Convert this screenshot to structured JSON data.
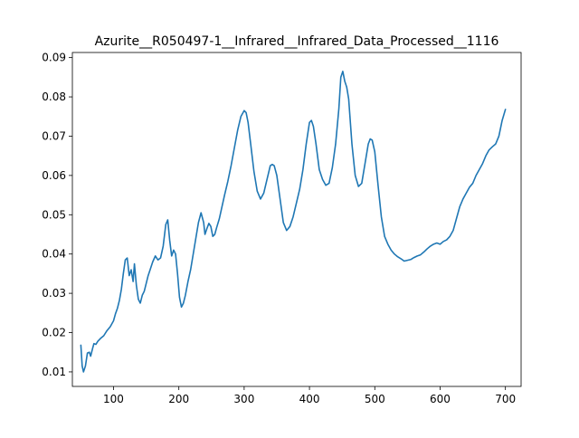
{
  "chart_data": {
    "type": "line",
    "title": "Azurite__R050497-1__Infrared__Infrared_Data_Processed__1116",
    "xlabel": "",
    "ylabel": "",
    "xlim": [
      37,
      724
    ],
    "ylim": [
      0.0063,
      0.0913
    ],
    "xticks": [
      100,
      200,
      300,
      400,
      500,
      600,
      700
    ],
    "xtick_labels": [
      "100",
      "200",
      "300",
      "400",
      "500",
      "600",
      "700"
    ],
    "yticks": [
      0.01,
      0.02,
      0.03,
      0.04,
      0.05,
      0.06,
      0.07,
      0.08,
      0.09
    ],
    "ytick_labels": [
      "0.01",
      "0.02",
      "0.03",
      "0.04",
      "0.05",
      "0.06",
      "0.07",
      "0.08",
      "0.09"
    ],
    "grid": false,
    "legend": "none",
    "line_color": "#1f77b4",
    "series": [
      {
        "x": [
          50,
          52,
          54,
          57,
          60,
          63,
          65,
          68,
          70,
          73,
          76,
          80,
          85,
          90,
          95,
          100,
          103,
          106,
          109,
          112,
          115,
          118,
          121,
          124,
          127,
          130,
          132,
          135,
          138,
          141,
          144,
          147,
          150,
          153,
          156,
          160,
          164,
          168,
          172,
          176,
          180,
          183,
          186,
          189,
          192,
          195,
          198,
          201,
          204,
          207,
          210,
          214,
          218,
          222,
          226,
          230,
          234,
          238,
          240,
          243,
          246,
          249,
          252,
          255,
          258,
          262,
          266,
          270,
          275,
          280,
          285,
          290,
          295,
          300,
          303,
          306,
          310,
          315,
          320,
          325,
          330,
          335,
          340,
          343,
          346,
          350,
          355,
          360,
          365,
          370,
          375,
          380,
          385,
          390,
          395,
          400,
          403,
          406,
          410,
          415,
          420,
          425,
          430,
          435,
          440,
          445,
          448,
          451,
          454,
          457,
          460,
          465,
          470,
          475,
          480,
          485,
          490,
          493,
          496,
          500,
          505,
          510,
          515,
          520,
          525,
          530,
          535,
          540,
          545,
          550,
          555,
          560,
          565,
          570,
          575,
          580,
          585,
          590,
          595,
          600,
          605,
          610,
          615,
          620,
          625,
          630,
          635,
          640,
          645,
          650,
          655,
          660,
          665,
          670,
          675,
          680,
          685,
          690,
          695,
          700
        ],
        "y": [
          0.0168,
          0.0115,
          0.01,
          0.0115,
          0.0148,
          0.015,
          0.014,
          0.016,
          0.0172,
          0.017,
          0.0178,
          0.0185,
          0.0192,
          0.0205,
          0.0215,
          0.023,
          0.0248,
          0.0262,
          0.0282,
          0.031,
          0.035,
          0.0385,
          0.039,
          0.0345,
          0.036,
          0.033,
          0.0375,
          0.032,
          0.0285,
          0.0275,
          0.0295,
          0.0305,
          0.0325,
          0.0345,
          0.036,
          0.038,
          0.0395,
          0.0385,
          0.039,
          0.042,
          0.0475,
          0.0487,
          0.0435,
          0.0395,
          0.041,
          0.04,
          0.035,
          0.029,
          0.0265,
          0.0275,
          0.0295,
          0.033,
          0.036,
          0.04,
          0.044,
          0.048,
          0.0505,
          0.048,
          0.045,
          0.0465,
          0.0478,
          0.047,
          0.0445,
          0.045,
          0.0468,
          0.049,
          0.052,
          0.055,
          0.0585,
          0.0625,
          0.067,
          0.0715,
          0.075,
          0.0765,
          0.076,
          0.0735,
          0.068,
          0.061,
          0.056,
          0.054,
          0.0555,
          0.059,
          0.0625,
          0.0628,
          0.0625,
          0.06,
          0.054,
          0.048,
          0.046,
          0.047,
          0.0495,
          0.053,
          0.0565,
          0.0615,
          0.068,
          0.0735,
          0.074,
          0.0725,
          0.068,
          0.0615,
          0.059,
          0.0575,
          0.058,
          0.062,
          0.068,
          0.077,
          0.085,
          0.0865,
          0.084,
          0.0825,
          0.0795,
          0.068,
          0.06,
          0.0572,
          0.058,
          0.063,
          0.068,
          0.0693,
          0.069,
          0.066,
          0.0575,
          0.0495,
          0.0445,
          0.0425,
          0.041,
          0.04,
          0.0393,
          0.0388,
          0.0382,
          0.0384,
          0.0386,
          0.0391,
          0.0395,
          0.0398,
          0.0405,
          0.0413,
          0.042,
          0.0425,
          0.0428,
          0.0425,
          0.0432,
          0.0436,
          0.0445,
          0.046,
          0.049,
          0.052,
          0.054,
          0.0555,
          0.057,
          0.058,
          0.06,
          0.0615,
          0.063,
          0.065,
          0.0665,
          0.0673,
          0.068,
          0.07,
          0.074,
          0.0768
        ]
      }
    ]
  }
}
